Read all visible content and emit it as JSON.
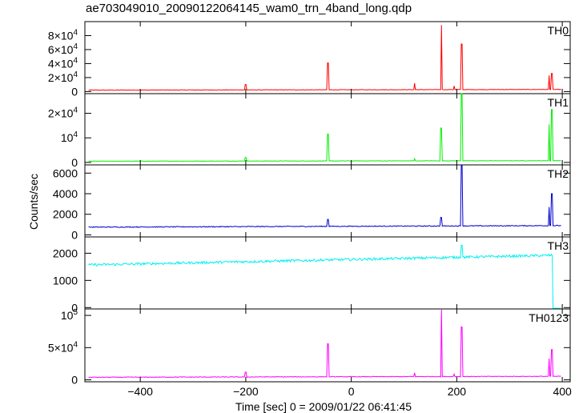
{
  "chart_data": {
    "type": "line",
    "title": "ae703049010_20090122064145_wam0_trn_4band_long.qdp",
    "xlabel": "Time [sec] 0 = 2009/01/22 06:41:45",
    "ylabel": "Counts/sec",
    "xlim": [
      -505,
      415
    ],
    "x_ticks": [
      {
        "value": -400,
        "label": "−400"
      },
      {
        "value": -200,
        "label": "−200"
      },
      {
        "value": 0,
        "label": "0"
      },
      {
        "value": 200,
        "label": "200"
      },
      {
        "value": 400,
        "label": "400"
      }
    ],
    "panels": [
      {
        "name": "TH0",
        "color": "#ff0000",
        "ylim": [
          -3000,
          100000
        ],
        "y_ticks": [
          {
            "value": 0,
            "label": "0"
          },
          {
            "value": 20000,
            "base": "2×10",
            "exp": "4"
          },
          {
            "value": 40000,
            "base": "4×10",
            "exp": "4"
          },
          {
            "value": 60000,
            "base": "6×10",
            "exp": "4"
          },
          {
            "value": 80000,
            "base": "8×10",
            "exp": "4"
          }
        ],
        "baseline_start": 2000,
        "baseline_end": 3000,
        "noise": 350,
        "spikes": [
          [
            -200,
            10000
          ],
          [
            -44,
            41000
          ],
          [
            120,
            12000
          ],
          [
            171,
            95000
          ],
          [
            195,
            8000
          ],
          [
            209,
            68000
          ],
          [
            375,
            23000
          ],
          [
            380,
            26000
          ]
        ],
        "end_drop": false
      },
      {
        "name": "TH1",
        "color": "#00ee00",
        "ylim": [
          -1000,
          28000
        ],
        "y_ticks": [
          {
            "value": 0,
            "label": "0"
          },
          {
            "value": 10000,
            "base": "10",
            "exp": "4"
          },
          {
            "value": 20000,
            "base": "2×10",
            "exp": "4"
          }
        ],
        "baseline_start": 500,
        "baseline_end": 700,
        "noise": 80,
        "spikes": [
          [
            -200,
            2000
          ],
          [
            -44,
            11500
          ],
          [
            120,
            1500
          ],
          [
            170,
            14000
          ],
          [
            209,
            28000
          ],
          [
            375,
            15500
          ],
          [
            380,
            21500
          ]
        ],
        "end_drop": false
      },
      {
        "name": "TH2",
        "color": "#0000cc",
        "ylim": [
          -200,
          6800
        ],
        "y_ticks": [
          {
            "value": 0,
            "label": "0"
          },
          {
            "value": 2000,
            "label": "2000"
          },
          {
            "value": 4000,
            "label": "4000"
          },
          {
            "value": 6000,
            "label": "6000"
          }
        ],
        "baseline_start": 750,
        "baseline_end": 900,
        "noise": 40,
        "spikes": [
          [
            -44,
            1500
          ],
          [
            170,
            1700
          ],
          [
            209,
            6800
          ],
          [
            375,
            2700
          ],
          [
            380,
            4000
          ]
        ],
        "end_drop": false
      },
      {
        "name": "TH3",
        "color": "#00f0f0",
        "ylim": [
          -50,
          2600
        ],
        "y_ticks": [
          {
            "value": 0,
            "label": "0"
          },
          {
            "value": 1000,
            "label": "1000"
          },
          {
            "value": 2000,
            "label": "2000"
          }
        ],
        "baseline_start": 1570,
        "baseline_end": 1930,
        "noise": 45,
        "spikes": [
          [
            209,
            2300
          ]
        ],
        "end_drop": true
      },
      {
        "name": "TH0123",
        "color": "#ff00ff",
        "ylim": [
          -3000,
          110000
        ],
        "y_ticks": [
          {
            "value": 0,
            "label": "0"
          },
          {
            "value": 50000,
            "base": "5×10",
            "exp": "4"
          },
          {
            "value": 100000,
            "base": "10",
            "exp": "5"
          }
        ],
        "baseline_start": 4000,
        "baseline_end": 5500,
        "noise": 500,
        "spikes": [
          [
            -200,
            12000
          ],
          [
            -44,
            56000
          ],
          [
            120,
            11000
          ],
          [
            171,
            110000
          ],
          [
            195,
            9000
          ],
          [
            209,
            82000
          ],
          [
            375,
            33000
          ],
          [
            380,
            47000
          ]
        ],
        "end_drop": false
      }
    ]
  }
}
